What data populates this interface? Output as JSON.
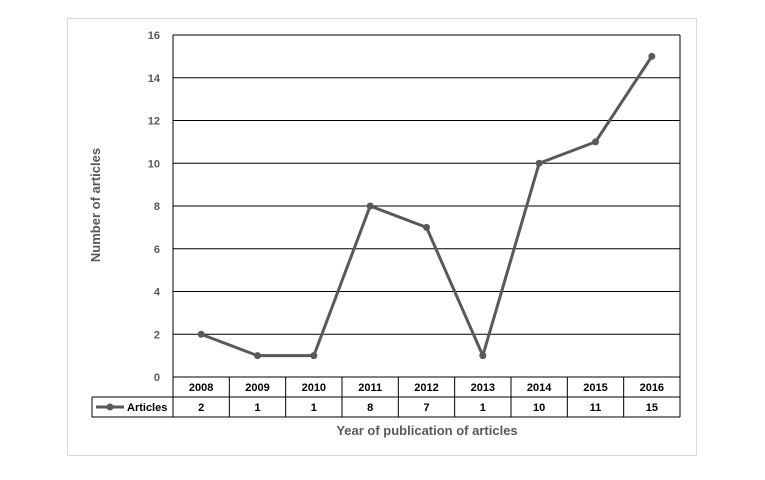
{
  "chart_data": {
    "type": "line",
    "categories": [
      "2008",
      "2009",
      "2010",
      "2011",
      "2012",
      "2013",
      "2014",
      "2015",
      "2016"
    ],
    "series": [
      {
        "name": "Articles",
        "values": [
          2,
          1,
          1,
          8,
          7,
          1,
          10,
          11,
          15
        ],
        "color": "#595959"
      }
    ],
    "xlabel": "Year of publication of articles",
    "ylabel": "Number of articles",
    "ylim": [
      0,
      16
    ],
    "yticks": [
      0,
      2,
      4,
      6,
      8,
      10,
      12,
      14,
      16
    ],
    "grid": true,
    "legend": "data-table",
    "data_table": true
  }
}
